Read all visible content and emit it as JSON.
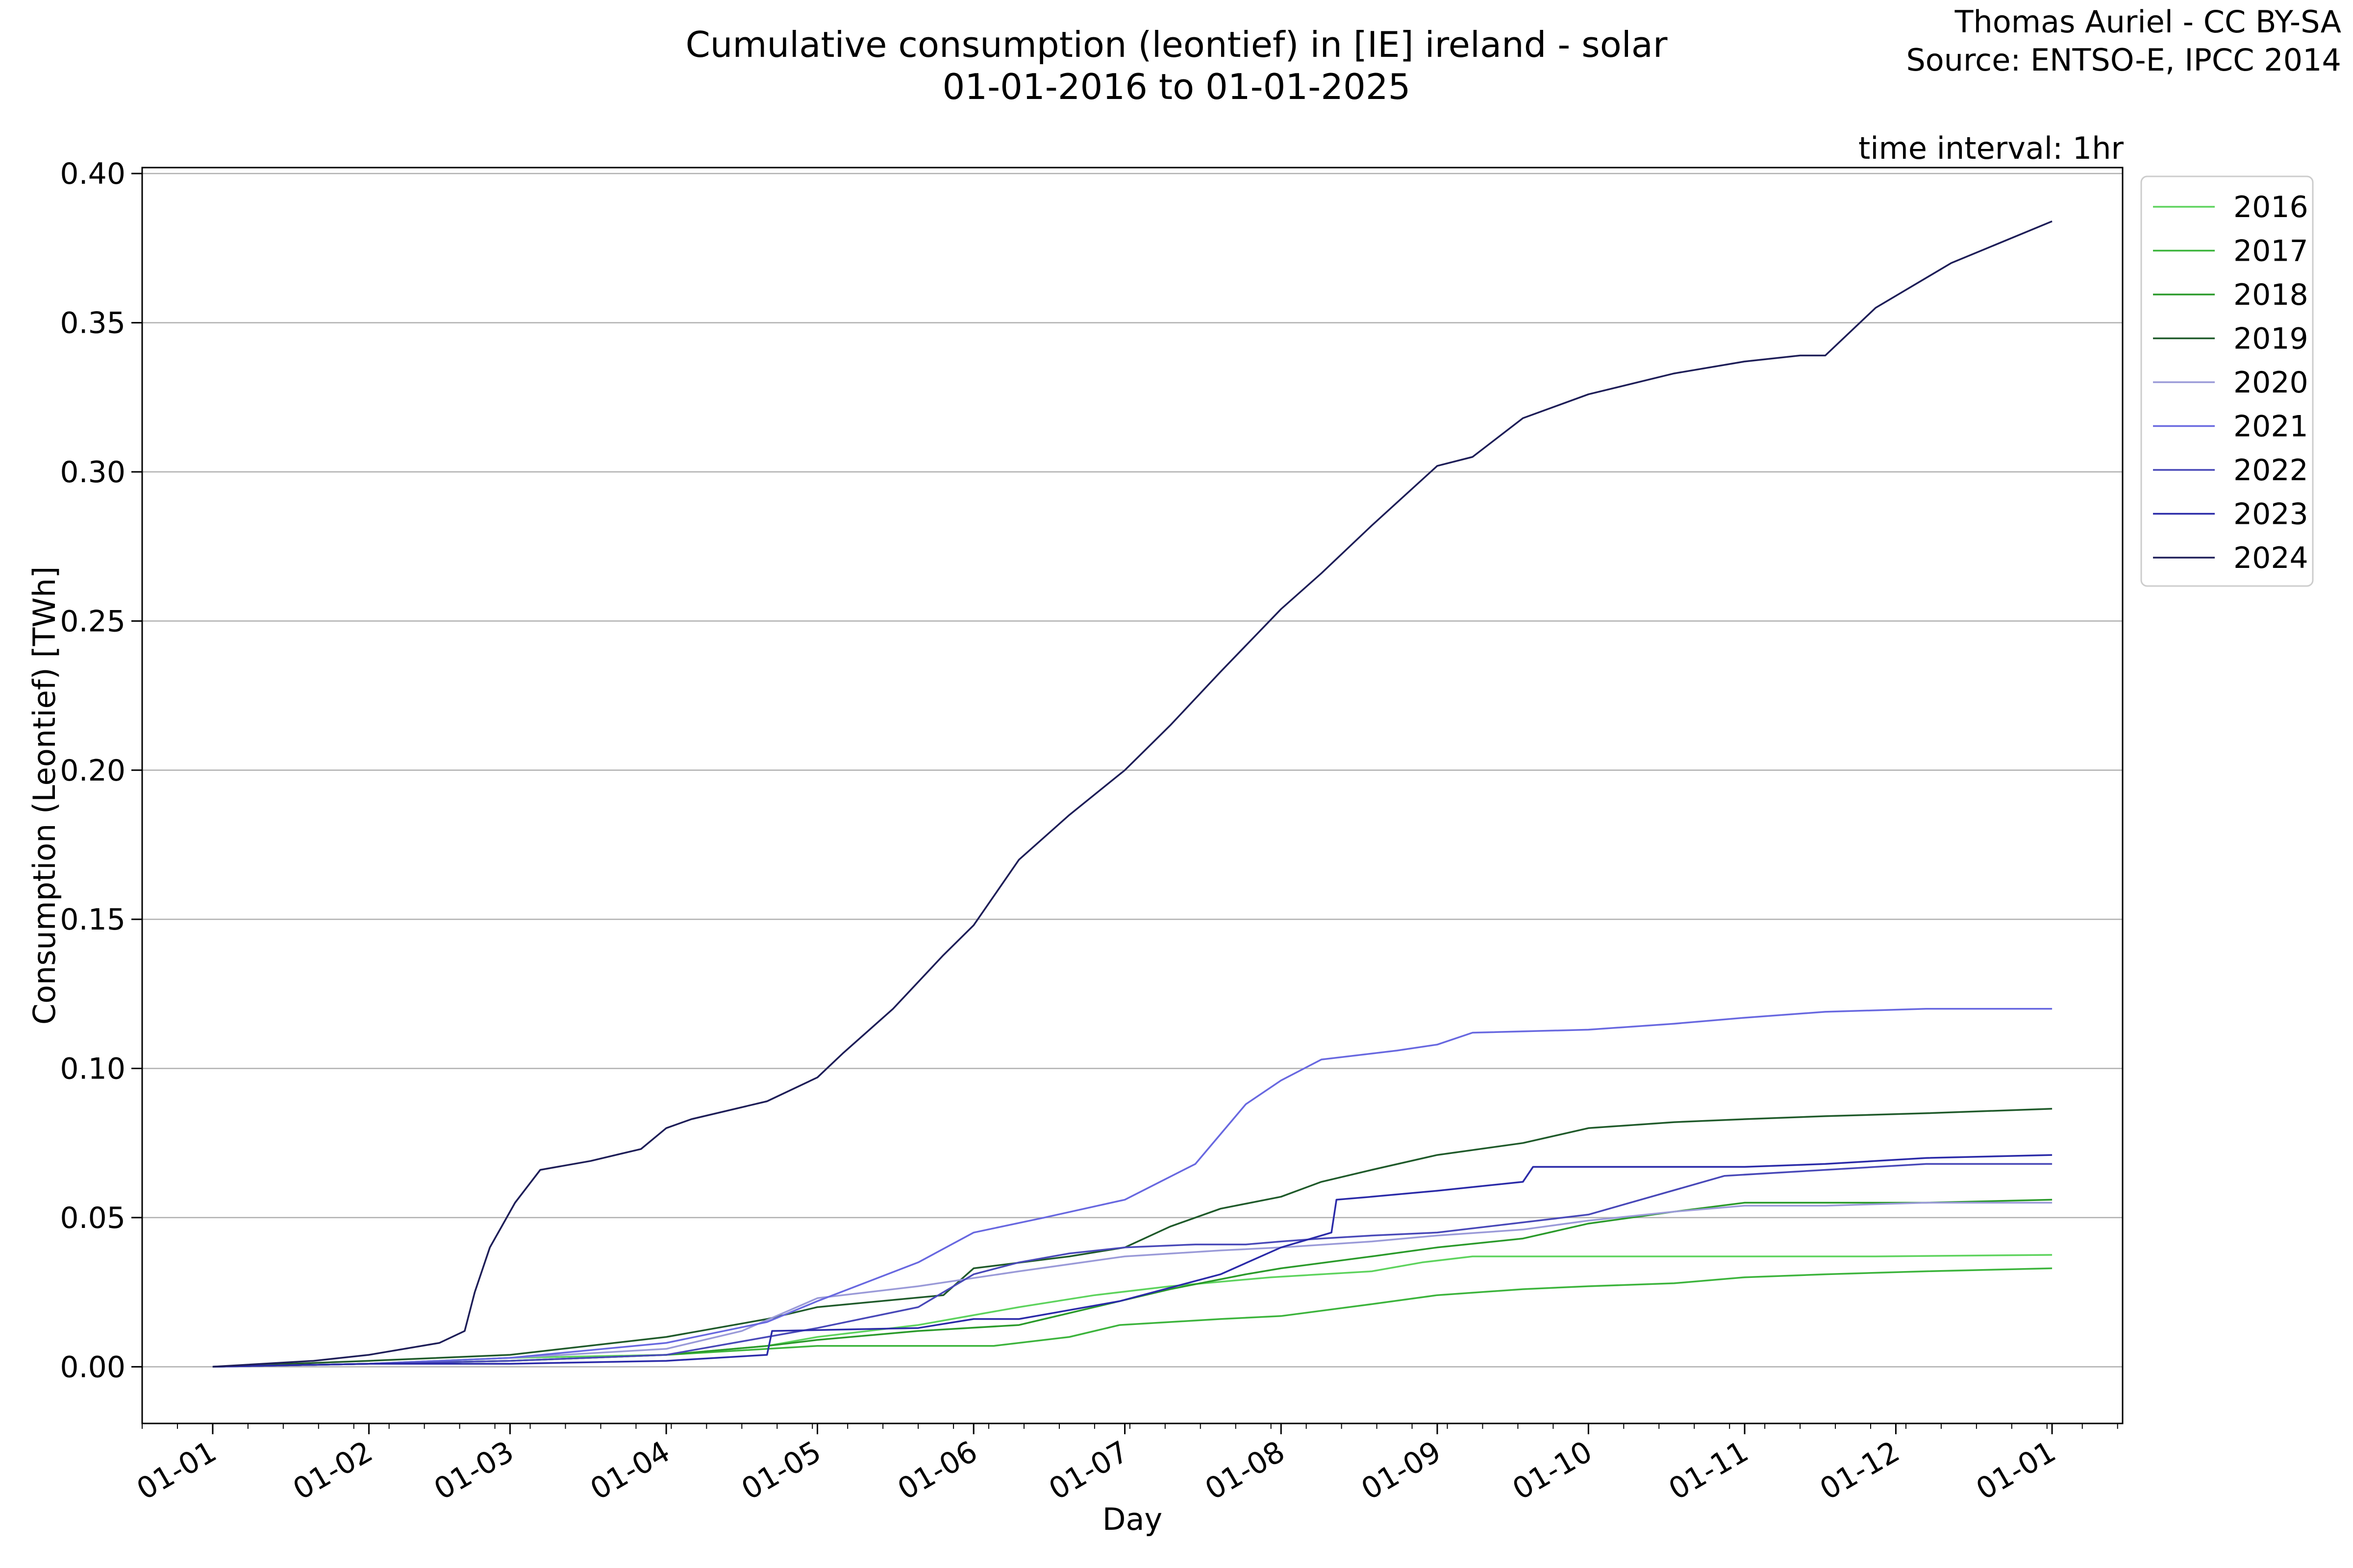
{
  "header": {
    "title_line1": "Cumulative consumption (leontief) in [IE] ireland - solar",
    "title_line2": "01-01-2016 to 01-01-2025",
    "credit_line1": "Thomas Auriel - CC BY-SA",
    "credit_line2": "Source: ENTSO-E, IPCC 2014",
    "interval": "time interval: 1hr"
  },
  "chart_data": {
    "type": "line",
    "xlabel": "Day",
    "ylabel": "Consumption (Leontief) [TWh]",
    "xlim": [
      -14,
      379
    ],
    "ylim": [
      -0.019,
      0.402
    ],
    "x_unit": "day of year",
    "x_ticks": [
      {
        "day": 0,
        "label": "01-01"
      },
      {
        "day": 31,
        "label": "01-02"
      },
      {
        "day": 59,
        "label": "01-03"
      },
      {
        "day": 90,
        "label": "01-04"
      },
      {
        "day": 120,
        "label": "01-05"
      },
      {
        "day": 151,
        "label": "01-06"
      },
      {
        "day": 181,
        "label": "01-07"
      },
      {
        "day": 212,
        "label": "01-08"
      },
      {
        "day": 243,
        "label": "01-09"
      },
      {
        "day": 273,
        "label": "01-10"
      },
      {
        "day": 304,
        "label": "01-11"
      },
      {
        "day": 334,
        "label": "01-12"
      },
      {
        "day": 365,
        "label": "01-01"
      }
    ],
    "y_ticks": [
      0.0,
      0.05,
      0.1,
      0.15,
      0.2,
      0.25,
      0.3,
      0.35,
      0.4
    ],
    "y_tick_labels": [
      "0.00",
      "0.05",
      "0.10",
      "0.15",
      "0.20",
      "0.25",
      "0.30",
      "0.35",
      "0.40"
    ],
    "grid": "horizontal",
    "legend_position": "outside-right",
    "series": [
      {
        "name": "2016",
        "color": "#5dd35d",
        "x": [
          0,
          31,
          59,
          90,
          110,
          120,
          140,
          160,
          175,
          190,
          210,
          230,
          240,
          250,
          270,
          300,
          330,
          365
        ],
        "y": [
          0,
          0.001,
          0.003,
          0.004,
          0.007,
          0.01,
          0.014,
          0.02,
          0.024,
          0.027,
          0.03,
          0.032,
          0.035,
          0.037,
          0.037,
          0.037,
          0.037,
          0.0375
        ]
      },
      {
        "name": "2017",
        "color": "#3cb43c",
        "x": [
          0,
          31,
          59,
          90,
          110,
          120,
          140,
          155,
          170,
          180,
          190,
          200,
          212,
          230,
          243,
          260,
          273,
          290,
          304,
          320,
          340,
          365
        ],
        "y": [
          0,
          0.001,
          0.002,
          0.004,
          0.006,
          0.007,
          0.007,
          0.007,
          0.01,
          0.014,
          0.015,
          0.016,
          0.017,
          0.021,
          0.024,
          0.026,
          0.027,
          0.028,
          0.03,
          0.031,
          0.032,
          0.033
        ]
      },
      {
        "name": "2018",
        "color": "#2a9a2a",
        "x": [
          0,
          31,
          59,
          90,
          110,
          120,
          140,
          160,
          175,
          190,
          205,
          212,
          230,
          243,
          260,
          273,
          290,
          304,
          320,
          340,
          365
        ],
        "y": [
          0,
          0.001,
          0.002,
          0.004,
          0.007,
          0.009,
          0.012,
          0.014,
          0.02,
          0.026,
          0.031,
          0.033,
          0.037,
          0.04,
          0.043,
          0.048,
          0.052,
          0.055,
          0.055,
          0.055,
          0.056
        ]
      },
      {
        "name": "2019",
        "color": "#1f5a2a",
        "x": [
          0,
          31,
          59,
          90,
          110,
          120,
          145,
          151,
          170,
          181,
          190,
          200,
          212,
          220,
          230,
          243,
          260,
          273,
          290,
          304,
          320,
          340,
          365
        ],
        "y": [
          0,
          0.002,
          0.004,
          0.01,
          0.016,
          0.02,
          0.024,
          0.033,
          0.037,
          0.04,
          0.047,
          0.053,
          0.057,
          0.062,
          0.066,
          0.071,
          0.075,
          0.08,
          0.082,
          0.083,
          0.084,
          0.085,
          0.0865
        ]
      },
      {
        "name": "2020",
        "color": "#9a9ad8",
        "x": [
          0,
          31,
          59,
          90,
          105,
          120,
          140,
          160,
          181,
          200,
          212,
          230,
          243,
          260,
          273,
          290,
          304,
          320,
          340,
          365
        ],
        "y": [
          0,
          0.001,
          0.003,
          0.006,
          0.012,
          0.023,
          0.027,
          0.032,
          0.037,
          0.039,
          0.04,
          0.042,
          0.044,
          0.046,
          0.049,
          0.052,
          0.054,
          0.054,
          0.055,
          0.055
        ]
      },
      {
        "name": "2021",
        "color": "#6868e0",
        "x": [
          0,
          31,
          59,
          90,
          110,
          120,
          140,
          151,
          165,
          181,
          195,
          205,
          212,
          220,
          235,
          243,
          250,
          273,
          290,
          304,
          320,
          340,
          365
        ],
        "y": [
          0,
          0.001,
          0.003,
          0.008,
          0.015,
          0.022,
          0.035,
          0.045,
          0.05,
          0.056,
          0.068,
          0.088,
          0.096,
          0.103,
          0.106,
          0.108,
          0.112,
          0.113,
          0.115,
          0.117,
          0.119,
          0.12,
          0.12
        ]
      },
      {
        "name": "2022",
        "color": "#4848b8",
        "x": [
          0,
          31,
          59,
          90,
          110,
          120,
          140,
          145,
          151,
          160,
          170,
          181,
          195,
          205,
          212,
          220,
          230,
          243,
          273,
          300,
          320,
          340,
          365
        ],
        "y": [
          0,
          0.001,
          0.002,
          0.004,
          0.01,
          0.013,
          0.02,
          0.025,
          0.031,
          0.035,
          0.038,
          0.04,
          0.041,
          0.041,
          0.042,
          0.043,
          0.044,
          0.045,
          0.051,
          0.064,
          0.066,
          0.068,
          0.068
        ]
      },
      {
        "name": "2023",
        "color": "#2a2aa8",
        "x": [
          0,
          31,
          59,
          90,
          110,
          111,
          140,
          151,
          160,
          180,
          200,
          212,
          222,
          223,
          230,
          243,
          260,
          262,
          290,
          304,
          320,
          340,
          365
        ],
        "y": [
          0,
          0.001,
          0.001,
          0.002,
          0.004,
          0.012,
          0.013,
          0.016,
          0.016,
          0.022,
          0.031,
          0.04,
          0.045,
          0.056,
          0.057,
          0.059,
          0.062,
          0.067,
          0.067,
          0.067,
          0.068,
          0.07,
          0.071
        ]
      },
      {
        "name": "2024",
        "color": "#1e1e58",
        "x": [
          0,
          20,
          31,
          45,
          50,
          52,
          55,
          60,
          65,
          75,
          85,
          90,
          95,
          110,
          120,
          125,
          135,
          145,
          151,
          160,
          170,
          181,
          190,
          200,
          212,
          220,
          230,
          243,
          250,
          260,
          273,
          290,
          304,
          315,
          320,
          330,
          345,
          365
        ],
        "y": [
          0,
          0.002,
          0.004,
          0.008,
          0.012,
          0.025,
          0.04,
          0.055,
          0.066,
          0.069,
          0.073,
          0.08,
          0.083,
          0.089,
          0.097,
          0.105,
          0.12,
          0.138,
          0.148,
          0.17,
          0.185,
          0.2,
          0.215,
          0.233,
          0.254,
          0.266,
          0.282,
          0.302,
          0.305,
          0.318,
          0.326,
          0.333,
          0.337,
          0.339,
          0.339,
          0.355,
          0.37,
          0.384
        ]
      }
    ]
  }
}
